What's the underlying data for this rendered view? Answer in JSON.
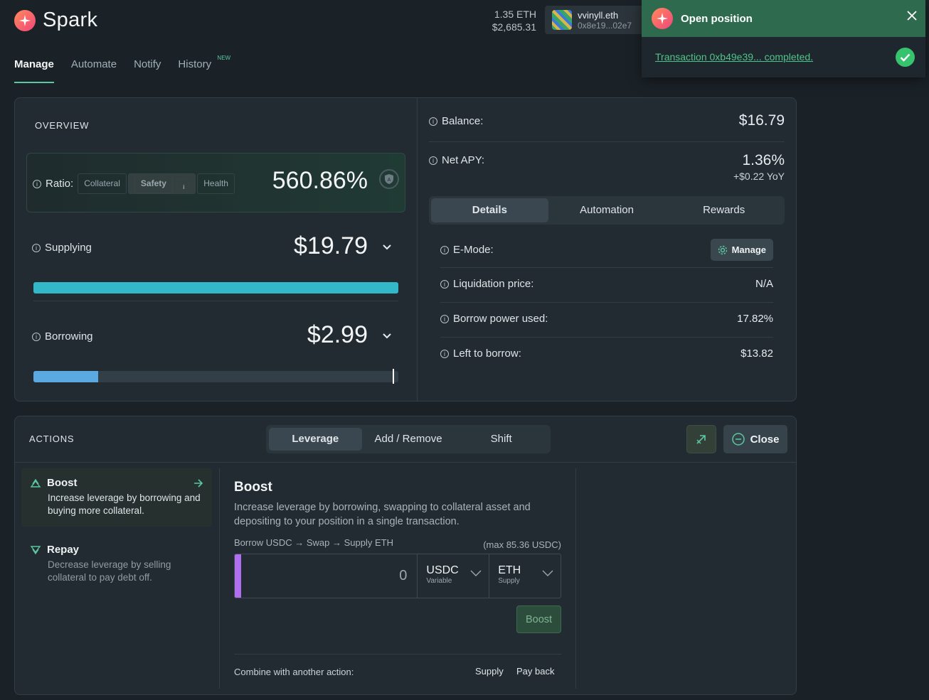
{
  "header": {
    "app_name": "Spark",
    "eth_balance": "1.35 ETH",
    "usd_balance": "$2,685.31",
    "wallet_name": "vvinyll.eth",
    "wallet_address": "0x8e19...02e7"
  },
  "nav": {
    "items": [
      {
        "label": "Manage"
      },
      {
        "label": "Automate"
      },
      {
        "label": "Notify"
      },
      {
        "label": "History",
        "badge": "NEW"
      }
    ]
  },
  "toast": {
    "title": "Open position",
    "message": "Transaction 0xb49e39... completed."
  },
  "overview": {
    "section_label": "OVERVIEW",
    "ratio_label": "Ratio:",
    "ratio_modes": [
      "Collateral",
      "Safety",
      "Health"
    ],
    "ratio_value": "560.86%",
    "supplying_label": "Supplying",
    "supplying_value": "$19.79",
    "supplying_fill": 1.0,
    "borrowing_label": "Borrowing",
    "borrowing_value": "$2.99",
    "borrowing_fill": 0.1782
  },
  "summary": {
    "balance_label": "Balance:",
    "balance_value": "$16.79",
    "apy_label": "Net APY:",
    "apy_value": "1.36%",
    "apy_yoy": "+$0.22 YoY",
    "tabs": [
      "Details",
      "Automation",
      "Rewards"
    ],
    "emode_label": "E-Mode:",
    "manage_label": "Manage",
    "liq_label": "Liquidation price:",
    "liq_value": "N/A",
    "borrow_power_label": "Borrow power used:",
    "borrow_power_value": "17.82%",
    "left_label": "Left to borrow:",
    "left_value": "$13.82"
  },
  "actions": {
    "section_label": "ACTIONS",
    "tabs": [
      "Leverage",
      "Add / Remove",
      "Shift"
    ],
    "close_label": "Close",
    "side": {
      "boost_title": "Boost",
      "boost_desc": "Increase leverage by borrowing and buying more collateral.",
      "repay_title": "Repay",
      "repay_desc": "Decrease leverage by selling collateral to pay debt off."
    },
    "boost": {
      "title": "Boost",
      "description": "Increase leverage by borrowing, swapping to collateral asset and depositing to your position in a single transaction.",
      "flow": "Borrow USDC → Swap → Supply ETH",
      "max": "(max 85.36 USDC)",
      "amount": "0",
      "from_token": "USDC",
      "from_sub": "Variable",
      "to_token": "ETH",
      "to_sub": "Supply",
      "button": "Boost",
      "combine_label": "Combine with another action:",
      "combine_supply": "Supply",
      "combine_payback": "Pay back"
    }
  },
  "colors": {
    "accent_green": "#5cc7a0",
    "supply_bar": "#33b8c9",
    "borrow_bar": "#5aa9e0",
    "input_accent": "#b06ef0"
  }
}
